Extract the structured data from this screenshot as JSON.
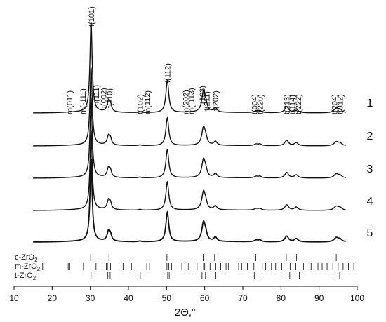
{
  "chart_data": {
    "type": "line",
    "xlabel": "2Θ,°",
    "xlim": [
      10,
      100
    ],
    "xticks": [
      10,
      20,
      30,
      40,
      50,
      60,
      70,
      80,
      90,
      100
    ],
    "series": [
      {
        "name": "1",
        "baseline": 0,
        "scale": 1.0,
        "slope": 0.0
      },
      {
        "name": "2",
        "baseline": 0,
        "scale": 0.86,
        "slope": 0.0
      },
      {
        "name": "3",
        "baseline": 0,
        "scale": 0.86,
        "slope": 0.0
      },
      {
        "name": "4",
        "baseline": 0,
        "scale": 0.86,
        "slope": 0.0
      },
      {
        "name": "5",
        "baseline": 0,
        "scale": 0.9,
        "slope": 0.0
      }
    ],
    "peaks": [
      {
        "pos": 30.2,
        "h": 1.0,
        "w": 0.35
      },
      {
        "pos": 34.8,
        "h": 0.12,
        "w": 0.45
      },
      {
        "pos": 35.3,
        "h": 0.06,
        "w": 0.35
      },
      {
        "pos": 43.0,
        "h": 0.01,
        "w": 0.4
      },
      {
        "pos": 50.2,
        "h": 0.36,
        "w": 0.45
      },
      {
        "pos": 59.7,
        "h": 0.23,
        "w": 0.55
      },
      {
        "pos": 60.3,
        "h": 0.06,
        "w": 0.4
      },
      {
        "pos": 62.8,
        "h": 0.05,
        "w": 0.5
      },
      {
        "pos": 73.5,
        "h": 0.02,
        "w": 0.6
      },
      {
        "pos": 74.5,
        "h": 0.02,
        "w": 0.5
      },
      {
        "pos": 81.5,
        "h": 0.07,
        "w": 0.6
      },
      {
        "pos": 84.0,
        "h": 0.04,
        "w": 0.6
      },
      {
        "pos": 94.5,
        "h": 0.05,
        "w": 0.7
      },
      {
        "pos": 95.5,
        "h": 0.03,
        "w": 0.6
      }
    ],
    "peak_labels": [
      {
        "text": "m(011)",
        "x": 24.5
      },
      {
        "text": "m(-111)",
        "x": 28.0
      },
      {
        "text": "t(101)",
        "x": 30.2
      },
      {
        "text": "m(111)",
        "x": 31.5
      },
      {
        "text": "t(002)",
        "x": 33.5
      },
      {
        "text": "t(110)",
        "x": 35.0
      },
      {
        "text": "t(102)",
        "x": 43.0
      },
      {
        "text": "m(112)",
        "x": 45.0
      },
      {
        "text": "t(112)",
        "x": 50.2
      },
      {
        "text": "m(202)",
        "x": 55.0
      },
      {
        "text": "m(-113)",
        "x": 56.5
      },
      {
        "text": "t(103)",
        "x": 59.3
      },
      {
        "text": "t(211)",
        "x": 60.5
      },
      {
        "text": "t(202)",
        "x": 62.8
      },
      {
        "text": "t(004)",
        "x": 73.0
      },
      {
        "text": "t(220)",
        "x": 74.5
      },
      {
        "text": "t(213)",
        "x": 81.5
      },
      {
        "text": "t(114)",
        "x": 83.0
      },
      {
        "text": "t(222)",
        "x": 84.5
      },
      {
        "text": "t(204)",
        "x": 94.0
      },
      {
        "text": "t(312)",
        "x": 95.5
      }
    ],
    "reference_phases": [
      {
        "label": "c-ZrO",
        "sub": "2",
        "lines": [
          30.1,
          34.9,
          50.1,
          59.6,
          62.6,
          73.4,
          81.4,
          84.1,
          94.5
        ]
      },
      {
        "label": "m-ZrO",
        "sub": "2",
        "lines": [
          17.5,
          24.2,
          24.6,
          28.2,
          31.5,
          34.2,
          34.5,
          35.3,
          38.6,
          40.8,
          41.2,
          44.8,
          45.5,
          49.3,
          50.1,
          50.6,
          51.3,
          54.0,
          55.4,
          55.8,
          57.2,
          58.0,
          59.7,
          60.0,
          61.4,
          62.9,
          64.2,
          65.6,
          66.2,
          68.9,
          69.7,
          71.2,
          71.4,
          72.9,
          75.1,
          76.0,
          77.5,
          78.6,
          80.2,
          82.4,
          83.9,
          85.9,
          87.9,
          89.7,
          90.8,
          92.1,
          93.6,
          95.0,
          96.3,
          97.7,
          99.1
        ]
      },
      {
        "label": "t-ZrO",
        "sub": "2",
        "lines": [
          30.2,
          34.6,
          35.2,
          43.1,
          50.3,
          50.7,
          59.3,
          60.2,
          62.9,
          73.0,
          74.5,
          81.3,
          82.3,
          84.8,
          94.2,
          95.4
        ]
      }
    ]
  }
}
